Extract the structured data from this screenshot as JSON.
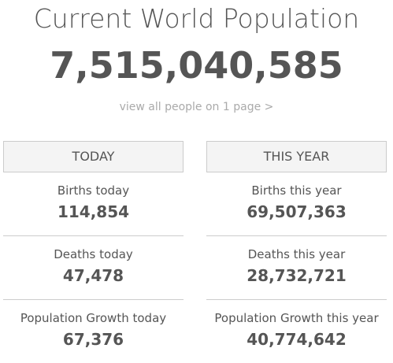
{
  "title": "Current World Population",
  "counter": "7,515,040,585",
  "view_link": "view all people on 1 page >",
  "today": {
    "header": "TODAY",
    "stats": [
      {
        "label": "Births today",
        "value": "114,854"
      },
      {
        "label": "Deaths today",
        "value": "47,478"
      },
      {
        "label": "Population Growth today",
        "value": "67,376"
      }
    ]
  },
  "this_year": {
    "header": "THIS YEAR",
    "stats": [
      {
        "label": "Births this year",
        "value": "69,507,363"
      },
      {
        "label": "Deaths this year",
        "value": "28,732,721"
      },
      {
        "label": "Population Growth this year",
        "value": "40,774,642"
      }
    ]
  }
}
